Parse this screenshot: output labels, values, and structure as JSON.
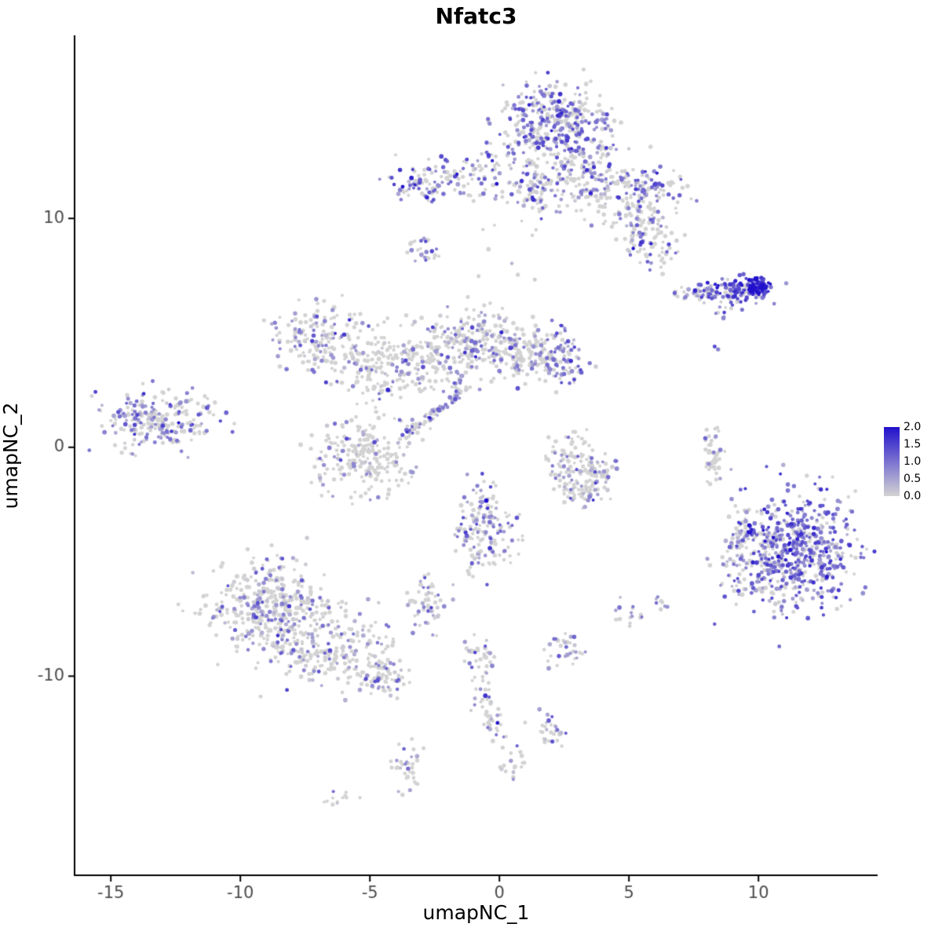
{
  "chart_data": {
    "type": "scatter",
    "title": "Nfatc3",
    "xlabel": "umapNC_1",
    "ylabel": "umapNC_2",
    "xlim": [
      -16.4,
      14.6
    ],
    "ylim": [
      -18.7,
      18.0
    ],
    "x_ticks": [
      -15,
      -10,
      -5,
      0,
      5,
      10
    ],
    "y_ticks": [
      10,
      0,
      -10
    ],
    "grid": false,
    "legend": {
      "position": "right",
      "ticks": [
        "2.0",
        "1.5",
        "1.0",
        "0.5",
        "0.0"
      ],
      "values": [
        2.0,
        1.5,
        1.0,
        0.5,
        0.0
      ],
      "min": 0.0,
      "max": 2.0
    },
    "colors": {
      "low": "#D3D3D3",
      "high": "#2111CC",
      "axis_text": "#4d4d4d",
      "axis_line": "#000000"
    },
    "point_radius_px": 2.4,
    "seed": 42,
    "clusters": [
      {
        "x": 2.0,
        "y": 14.2,
        "sx": 1.1,
        "sy": 0.8,
        "n": 360,
        "frac": 0.55,
        "mean": 0.9
      },
      {
        "x": 3.2,
        "y": 11.9,
        "sx": 1.0,
        "sy": 0.8,
        "n": 190,
        "frac": 0.45,
        "mean": 0.8
      },
      {
        "x": 1.3,
        "y": 11.4,
        "sx": 0.45,
        "sy": 0.9,
        "n": 85,
        "frac": 0.4,
        "mean": 0.8
      },
      {
        "x": 5.4,
        "y": 10.6,
        "sx": 0.8,
        "sy": 0.8,
        "n": 130,
        "frac": 0.35,
        "mean": 0.7
      },
      {
        "x": 5.8,
        "y": 9.0,
        "sx": 0.55,
        "sy": 0.6,
        "n": 70,
        "frac": 0.45,
        "mean": 0.8
      },
      {
        "x": 5.7,
        "y": 11.5,
        "sx": 0.35,
        "sy": 0.3,
        "n": 35,
        "frac": 0.7,
        "mean": 1.0
      },
      {
        "x": -2.7,
        "y": 11.6,
        "sx": 0.75,
        "sy": 0.45,
        "n": 95,
        "frac": 0.6,
        "mean": 1.0
      },
      {
        "x": -0.5,
        "y": 11.9,
        "sx": 0.7,
        "sy": 0.55,
        "n": 60,
        "frac": 0.4,
        "mean": 0.8
      },
      {
        "x": -2.9,
        "y": 8.6,
        "sx": 0.3,
        "sy": 0.35,
        "n": 25,
        "frac": 0.5,
        "mean": 0.8
      },
      {
        "x": 9.2,
        "y": 6.85,
        "sx": 0.65,
        "sy": 0.25,
        "n": 110,
        "frac": 0.85,
        "mean": 1.3
      },
      {
        "x": 9.95,
        "y": 7.0,
        "sx": 0.28,
        "sy": 0.2,
        "n": 70,
        "frac": 0.95,
        "mean": 1.8
      },
      {
        "x": 7.85,
        "y": 6.75,
        "sx": 0.5,
        "sy": 0.18,
        "n": 45,
        "frac": 0.4,
        "mean": 0.7
      },
      {
        "x": 8.8,
        "y": 5.9,
        "sx": 0.3,
        "sy": 0.35,
        "n": 10,
        "frac": 0.5,
        "mean": 0.8
      },
      {
        "x": 8.3,
        "y": 4.4,
        "sx": 0.1,
        "sy": 0.1,
        "n": 2,
        "frac": 1.0,
        "mean": 1.2
      },
      {
        "x": -13.2,
        "y": 1.2,
        "sx": 1.1,
        "sy": 0.65,
        "n": 230,
        "frac": 0.45,
        "mean": 0.75
      },
      {
        "x": -6.9,
        "y": 4.7,
        "sx": 0.9,
        "sy": 0.75,
        "n": 170,
        "frac": 0.4,
        "mean": 0.65
      },
      {
        "x": -4.6,
        "y": 3.6,
        "sx": 0.8,
        "sy": 0.8,
        "n": 140,
        "frac": 0.3,
        "mean": 0.6
      },
      {
        "x": -2.6,
        "y": 3.9,
        "sx": 0.8,
        "sy": 0.9,
        "n": 150,
        "frac": 0.3,
        "mean": 0.6
      },
      {
        "x": -0.8,
        "y": 4.7,
        "sx": 0.8,
        "sy": 0.75,
        "n": 170,
        "frac": 0.35,
        "mean": 0.6
      },
      {
        "x": 0.9,
        "y": 4.1,
        "sx": 0.7,
        "sy": 0.6,
        "n": 120,
        "frac": 0.3,
        "mean": 0.6
      },
      {
        "x": 2.3,
        "y": 3.9,
        "sx": 0.5,
        "sy": 0.6,
        "n": 95,
        "frac": 0.6,
        "mean": 0.9
      },
      {
        "x": -2.4,
        "y": 1.6,
        "sx": 0.9,
        "sy": 0.12,
        "n": 80,
        "frac": 0.45,
        "mean": 0.7,
        "rot": 0.7
      },
      {
        "x": -5.3,
        "y": -0.3,
        "sx": 0.95,
        "sy": 0.85,
        "n": 220,
        "frac": 0.25,
        "mean": 0.55
      },
      {
        "x": 2.6,
        "y": -0.8,
        "sx": 0.5,
        "sy": 0.5,
        "n": 70,
        "frac": 0.35,
        "mean": 0.6
      },
      {
        "x": 3.8,
        "y": -1.0,
        "sx": 0.4,
        "sy": 0.5,
        "n": 55,
        "frac": 0.35,
        "mean": 0.6
      },
      {
        "x": 3.1,
        "y": -1.9,
        "sx": 0.5,
        "sy": 0.35,
        "n": 55,
        "frac": 0.3,
        "mean": 0.6
      },
      {
        "x": 3.0,
        "y": 0.5,
        "sx": 0.25,
        "sy": 0.25,
        "n": 10,
        "frac": 0.3,
        "mean": 0.6
      },
      {
        "x": 8.25,
        "y": -0.3,
        "sx": 0.18,
        "sy": 0.75,
        "n": 45,
        "frac": 0.2,
        "mean": 0.5
      },
      {
        "x": 11.4,
        "y": -4.6,
        "sx": 1.15,
        "sy": 1.2,
        "n": 620,
        "frac": 0.72,
        "mean": 1.0
      },
      {
        "x": 9.2,
        "y": -4.7,
        "sx": 0.45,
        "sy": 1.0,
        "n": 70,
        "frac": 0.45,
        "mean": 0.7
      },
      {
        "x": -0.6,
        "y": -3.6,
        "sx": 0.55,
        "sy": 1.0,
        "n": 160,
        "frac": 0.5,
        "mean": 0.8
      },
      {
        "x": -8.9,
        "y": -7.0,
        "sx": 1.15,
        "sy": 1.05,
        "n": 390,
        "frac": 0.3,
        "mean": 0.6
      },
      {
        "x": -6.6,
        "y": -8.8,
        "sx": 1.2,
        "sy": 0.8,
        "n": 220,
        "frac": 0.28,
        "mean": 0.55
      },
      {
        "x": -4.6,
        "y": -10.0,
        "sx": 0.5,
        "sy": 0.45,
        "n": 70,
        "frac": 0.3,
        "mean": 0.6
      },
      {
        "x": -2.8,
        "y": -6.9,
        "sx": 0.35,
        "sy": 0.55,
        "n": 60,
        "frac": 0.45,
        "mean": 0.7
      },
      {
        "x": 2.5,
        "y": -8.9,
        "sx": 0.4,
        "sy": 0.35,
        "n": 35,
        "frac": 0.35,
        "mean": 0.7
      },
      {
        "x": 4.9,
        "y": -7.3,
        "sx": 0.35,
        "sy": 0.3,
        "n": 15,
        "frac": 0.4,
        "mean": 0.7
      },
      {
        "x": -0.8,
        "y": -9.2,
        "sx": 0.35,
        "sy": 0.4,
        "n": 32,
        "frac": 0.35,
        "mean": 0.7
      },
      {
        "x": -0.7,
        "y": -10.9,
        "sx": 0.25,
        "sy": 0.5,
        "n": 25,
        "frac": 0.3,
        "mean": 0.6
      },
      {
        "x": -0.3,
        "y": -12.2,
        "sx": 0.3,
        "sy": 0.4,
        "n": 20,
        "frac": 0.3,
        "mean": 0.6
      },
      {
        "x": 2.0,
        "y": -12.5,
        "sx": 0.35,
        "sy": 0.4,
        "n": 30,
        "frac": 0.3,
        "mean": 0.7
      },
      {
        "x": -3.5,
        "y": -14.0,
        "sx": 0.35,
        "sy": 0.55,
        "n": 35,
        "frac": 0.35,
        "mean": 0.7
      },
      {
        "x": 0.5,
        "y": -13.9,
        "sx": 0.25,
        "sy": 0.35,
        "n": 18,
        "frac": 0.2,
        "mean": 0.5
      },
      {
        "x": -6.1,
        "y": -15.4,
        "sx": 0.35,
        "sy": 0.15,
        "n": 12,
        "frac": 0.1,
        "mean": 0.4
      },
      {
        "x": 0.3,
        "y": 8.2,
        "sx": 1.4,
        "sy": 0.9,
        "n": 10,
        "frac": 0.3,
        "mean": 0.6
      },
      {
        "x": 6.3,
        "y": -6.7,
        "sx": 0.2,
        "sy": 0.2,
        "n": 8,
        "frac": 0.4,
        "mean": 0.7
      }
    ]
  }
}
